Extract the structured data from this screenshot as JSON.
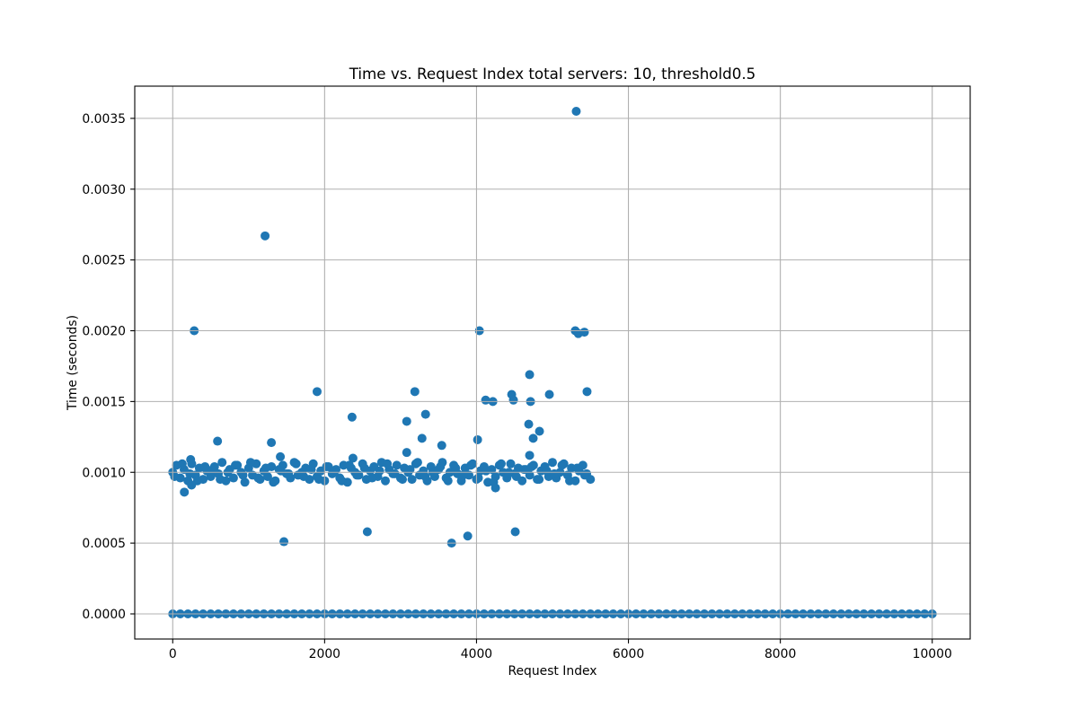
{
  "chart_data": {
    "type": "scatter",
    "title": "Time vs. Request Index total servers: 10, threshold0.5",
    "xlabel": "Request Index",
    "ylabel": "Time (seconds)",
    "xlim": [
      -500,
      10500
    ],
    "ylim": [
      -0.0001775,
      0.0037275
    ],
    "xticks": [
      "0",
      "2000",
      "4000",
      "6000",
      "8000",
      "10000"
    ],
    "yticks": [
      "0.0000",
      "0.0005",
      "0.0010",
      "0.0015",
      "0.0020",
      "0.0025",
      "0.0030",
      "0.0035"
    ],
    "grid": true,
    "legend": "none",
    "marker_color": "#1f77b4",
    "grid_color": "#b0b0b0",
    "points": [
      [
        0,
        0
      ],
      [
        100,
        0
      ],
      [
        200,
        0
      ],
      [
        300,
        0
      ],
      [
        400,
        0
      ],
      [
        500,
        0
      ],
      [
        600,
        0
      ],
      [
        700,
        0
      ],
      [
        800,
        0
      ],
      [
        900,
        0
      ],
      [
        1000,
        0
      ],
      [
        1100,
        0
      ],
      [
        1200,
        0
      ],
      [
        1300,
        0
      ],
      [
        1400,
        0
      ],
      [
        1500,
        0
      ],
      [
        1600,
        0
      ],
      [
        1700,
        0
      ],
      [
        1800,
        0
      ],
      [
        1900,
        0
      ],
      [
        2000,
        0
      ],
      [
        2100,
        0
      ],
      [
        2200,
        0
      ],
      [
        2300,
        0
      ],
      [
        2400,
        0
      ],
      [
        2500,
        0
      ],
      [
        2600,
        0
      ],
      [
        2700,
        0
      ],
      [
        2800,
        0
      ],
      [
        2900,
        0
      ],
      [
        3000,
        0
      ],
      [
        3100,
        0
      ],
      [
        3200,
        0
      ],
      [
        3300,
        0
      ],
      [
        3400,
        0
      ],
      [
        3500,
        0
      ],
      [
        3600,
        0
      ],
      [
        3700,
        0
      ],
      [
        3800,
        0
      ],
      [
        3900,
        0
      ],
      [
        4000,
        0
      ],
      [
        4100,
        0
      ],
      [
        4200,
        0
      ],
      [
        4300,
        0
      ],
      [
        4400,
        0
      ],
      [
        4500,
        0
      ],
      [
        4600,
        0
      ],
      [
        4700,
        0
      ],
      [
        4800,
        0
      ],
      [
        4900,
        0
      ],
      [
        5000,
        0
      ],
      [
        5100,
        0
      ],
      [
        5200,
        0
      ],
      [
        5300,
        0
      ],
      [
        5400,
        0
      ],
      [
        5500,
        0
      ],
      [
        5600,
        0
      ],
      [
        5700,
        0
      ],
      [
        5800,
        0
      ],
      [
        5900,
        0
      ],
      [
        6000,
        0
      ],
      [
        6100,
        0
      ],
      [
        6200,
        0
      ],
      [
        6300,
        0
      ],
      [
        6400,
        0
      ],
      [
        6500,
        0
      ],
      [
        6600,
        0
      ],
      [
        6700,
        0
      ],
      [
        6800,
        0
      ],
      [
        6900,
        0
      ],
      [
        7000,
        0
      ],
      [
        7100,
        0
      ],
      [
        7200,
        0
      ],
      [
        7300,
        0
      ],
      [
        7400,
        0
      ],
      [
        7500,
        0
      ],
      [
        7600,
        0
      ],
      [
        7700,
        0
      ],
      [
        7800,
        0
      ],
      [
        7900,
        0
      ],
      [
        8000,
        0
      ],
      [
        8100,
        0
      ],
      [
        8200,
        0
      ],
      [
        8300,
        0
      ],
      [
        8400,
        0
      ],
      [
        8500,
        0
      ],
      [
        8600,
        0
      ],
      [
        8700,
        0
      ],
      [
        8800,
        0
      ],
      [
        8900,
        0
      ],
      [
        9000,
        0
      ],
      [
        9100,
        0
      ],
      [
        9200,
        0
      ],
      [
        9300,
        0
      ],
      [
        9400,
        0
      ],
      [
        9500,
        0
      ],
      [
        9600,
        0
      ],
      [
        9700,
        0
      ],
      [
        9800,
        0
      ],
      [
        9900,
        0
      ],
      [
        10000,
        0
      ],
      [
        0,
        0.001
      ],
      [
        50,
        0.00105
      ],
      [
        100,
        0.00096
      ],
      [
        150,
        0.00102
      ],
      [
        200,
        0.00094
      ],
      [
        250,
        0.00106
      ],
      [
        300,
        0.00098
      ],
      [
        350,
        0.00103
      ],
      [
        400,
        0.00095
      ],
      [
        450,
        0.00101
      ],
      [
        500,
        0.00097
      ],
      [
        550,
        0.00104
      ],
      [
        600,
        0.00099
      ],
      [
        650,
        0.00107
      ],
      [
        700,
        0.00094
      ],
      [
        750,
        0.00102
      ],
      [
        800,
        0.00096
      ],
      [
        850,
        0.00105
      ],
      [
        900,
        0.001
      ],
      [
        950,
        0.00093
      ],
      [
        1000,
        0.00103
      ],
      [
        1050,
        0.00098
      ],
      [
        1100,
        0.00106
      ],
      [
        1150,
        0.00095
      ],
      [
        1200,
        0.00101
      ],
      [
        1250,
        0.00097
      ],
      [
        1300,
        0.00104
      ],
      [
        1350,
        0.00094
      ],
      [
        1400,
        0.00102
      ],
      [
        1450,
        0.00105
      ],
      [
        1500,
        0.00099
      ],
      [
        1550,
        0.00096
      ],
      [
        1600,
        0.00107
      ],
      [
        1650,
        0.00098
      ],
      [
        1700,
        0.001
      ],
      [
        1750,
        0.00103
      ],
      [
        1800,
        0.00095
      ],
      [
        1850,
        0.00106
      ],
      [
        1900,
        0.00097
      ],
      [
        1950,
        0.00101
      ],
      [
        2000,
        0.00094
      ],
      [
        2050,
        0.00104
      ],
      [
        2100,
        0.00099
      ],
      [
        2150,
        0.00102
      ],
      [
        2200,
        0.00096
      ],
      [
        2250,
        0.00105
      ],
      [
        2300,
        0.00093
      ],
      [
        2350,
        0.00103
      ],
      [
        2400,
        0.001
      ],
      [
        2450,
        0.00098
      ],
      [
        2500,
        0.00106
      ],
      [
        2550,
        0.00095
      ],
      [
        2600,
        0.00101
      ],
      [
        2650,
        0.00104
      ],
      [
        2700,
        0.00097
      ],
      [
        2750,
        0.00107
      ],
      [
        2800,
        0.00094
      ],
      [
        2850,
        0.00102
      ],
      [
        2900,
        0.00099
      ],
      [
        2950,
        0.00105
      ],
      [
        3000,
        0.00096
      ],
      [
        3050,
        0.00103
      ],
      [
        3100,
        0.001
      ],
      [
        3150,
        0.00095
      ],
      [
        3200,
        0.00106
      ],
      [
        3250,
        0.00098
      ],
      [
        3300,
        0.00101
      ],
      [
        3350,
        0.00094
      ],
      [
        3400,
        0.00104
      ],
      [
        3450,
        0.00097
      ],
      [
        3500,
        0.00102
      ],
      [
        3550,
        0.00107
      ],
      [
        3600,
        0.00096
      ],
      [
        3650,
        0.001
      ],
      [
        3700,
        0.00105
      ],
      [
        3750,
        0.00099
      ],
      [
        3800,
        0.00094
      ],
      [
        3850,
        0.00103
      ],
      [
        3900,
        0.00098
      ],
      [
        3950,
        0.00106
      ],
      [
        4000,
        0.00095
      ],
      [
        4050,
        0.00101
      ],
      [
        4100,
        0.00104
      ],
      [
        4150,
        0.00093
      ],
      [
        4200,
        0.00102
      ],
      [
        4250,
        0.00097
      ],
      [
        4300,
        0.00105
      ],
      [
        4350,
        0.001
      ],
      [
        4400,
        0.00096
      ],
      [
        4450,
        0.00106
      ],
      [
        4500,
        0.00099
      ],
      [
        4550,
        0.00103
      ],
      [
        4600,
        0.00094
      ],
      [
        4650,
        0.00102
      ],
      [
        4700,
        0.00098
      ],
      [
        4750,
        0.00105
      ],
      [
        4800,
        0.00095
      ],
      [
        4850,
        0.00101
      ],
      [
        4900,
        0.00104
      ],
      [
        4950,
        0.00097
      ],
      [
        5000,
        0.00107
      ],
      [
        5050,
        0.00096
      ],
      [
        5100,
        0.001
      ],
      [
        5150,
        0.00106
      ],
      [
        5200,
        0.00098
      ],
      [
        5250,
        0.00103
      ],
      [
        5300,
        0.00094
      ],
      [
        5350,
        0.00101
      ],
      [
        5400,
        0.00105
      ],
      [
        5450,
        0.00099
      ],
      [
        5500,
        0.00095
      ],
      [
        25,
        0.00097
      ],
      [
        125,
        0.00106
      ],
      [
        225,
        0.00099
      ],
      [
        325,
        0.00094
      ],
      [
        425,
        0.00104
      ],
      [
        525,
        0.00102
      ],
      [
        625,
        0.00095
      ],
      [
        725,
        0.001
      ],
      [
        825,
        0.00105
      ],
      [
        925,
        0.00098
      ],
      [
        1025,
        0.00107
      ],
      [
        1125,
        0.00096
      ],
      [
        1225,
        0.00103
      ],
      [
        1325,
        0.00093
      ],
      [
        1425,
        0.00101
      ],
      [
        1525,
        0.00099
      ],
      [
        1625,
        0.00106
      ],
      [
        1725,
        0.00097
      ],
      [
        1825,
        0.00102
      ],
      [
        1925,
        0.00095
      ],
      [
        2025,
        0.00104
      ],
      [
        2125,
        0.001
      ],
      [
        2225,
        0.00094
      ],
      [
        2325,
        0.00105
      ],
      [
        2425,
        0.00098
      ],
      [
        2525,
        0.00103
      ],
      [
        2625,
        0.00096
      ],
      [
        2725,
        0.00101
      ],
      [
        2825,
        0.00106
      ],
      [
        2925,
        0.00099
      ],
      [
        3025,
        0.00095
      ],
      [
        3125,
        0.00102
      ],
      [
        3225,
        0.00107
      ],
      [
        3325,
        0.00097
      ],
      [
        3425,
        0.001
      ],
      [
        3525,
        0.00104
      ],
      [
        3625,
        0.00094
      ],
      [
        3725,
        0.00103
      ],
      [
        3825,
        0.00098
      ],
      [
        3925,
        0.00105
      ],
      [
        4025,
        0.00096
      ],
      [
        4125,
        0.00101
      ],
      [
        4225,
        0.00093
      ],
      [
        4325,
        0.00106
      ],
      [
        4425,
        0.001
      ],
      [
        4525,
        0.00097
      ],
      [
        4625,
        0.00102
      ],
      [
        4725,
        0.00104
      ],
      [
        4825,
        0.00095
      ],
      [
        4925,
        0.00101
      ],
      [
        5025,
        0.00099
      ],
      [
        5125,
        0.00105
      ],
      [
        5225,
        0.00094
      ],
      [
        5325,
        0.00103
      ],
      [
        5425,
        0.00098
      ],
      [
        283,
        0.002
      ],
      [
        1216,
        0.00267
      ],
      [
        5313,
        0.00355
      ],
      [
        4038,
        0.002
      ],
      [
        5300,
        0.002
      ],
      [
        5340,
        0.00198
      ],
      [
        5420,
        0.00199
      ],
      [
        4699,
        0.00169
      ],
      [
        1901,
        0.00157
      ],
      [
        3188,
        0.00157
      ],
      [
        5455,
        0.00157
      ],
      [
        4120,
        0.00151
      ],
      [
        4215,
        0.0015
      ],
      [
        4463,
        0.00155
      ],
      [
        4486,
        0.00151
      ],
      [
        4711,
        0.0015
      ],
      [
        4959,
        0.00155
      ],
      [
        2361,
        0.00139
      ],
      [
        3081,
        0.00136
      ],
      [
        3329,
        0.00141
      ],
      [
        3282,
        0.00124
      ],
      [
        4687,
        0.00134
      ],
      [
        4746,
        0.00124
      ],
      [
        4829,
        0.00129
      ],
      [
        1299,
        0.00121
      ],
      [
        590,
        0.00122
      ],
      [
        3542,
        0.00119
      ],
      [
        4014,
        0.00123
      ],
      [
        3081,
        0.00114
      ],
      [
        1417,
        0.00111
      ],
      [
        2373,
        0.0011
      ],
      [
        4699,
        0.00112
      ],
      [
        236,
        0.00109
      ],
      [
        153,
        0.00086
      ],
      [
        248,
        0.00091
      ],
      [
        4250,
        0.00089
      ],
      [
        1464,
        0.00051
      ],
      [
        2562,
        0.00058
      ],
      [
        3672,
        0.0005
      ],
      [
        3884,
        0.00055
      ],
      [
        4510,
        0.00058
      ]
    ]
  }
}
